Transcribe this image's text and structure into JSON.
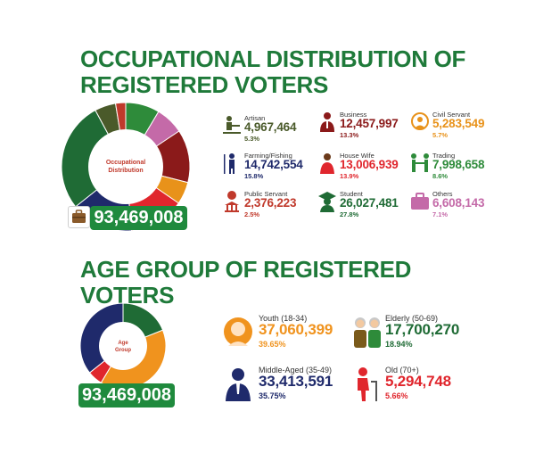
{
  "occupation": {
    "title": "OCCUPATIONAL DISTRIBUTION OF REGISTERED VOTERS",
    "center_label": "Occupational Distribution",
    "total": "93,469,008",
    "items": [
      {
        "label": "Artisan",
        "value": "4,967,464",
        "pct": "5.3%",
        "color": "#4a5a2a",
        "icon": "artisan-icon"
      },
      {
        "label": "Business",
        "value": "12,457,997",
        "pct": "13.3%",
        "color": "#8b1a1a",
        "icon": "business-person-icon"
      },
      {
        "label": "Civil Servant",
        "value": "5,283,549",
        "pct": "5.7%",
        "color": "#e8921a",
        "icon": "civil-servant-icon"
      },
      {
        "label": "Farming/Fishing",
        "value": "14,742,554",
        "pct": "15.8%",
        "color": "#1f2a6b",
        "icon": "farmer-icon"
      },
      {
        "label": "House Wife",
        "value": "13,006,939",
        "pct": "13.9%",
        "color": "#e0262d",
        "icon": "housewife-icon"
      },
      {
        "label": "Trading",
        "value": "7,998,658",
        "pct": "8.6%",
        "color": "#2e8b3a",
        "icon": "trading-icon"
      },
      {
        "label": "Public Servant",
        "value": "2,376,223",
        "pct": "2.5%",
        "color": "#c0392b",
        "icon": "public-servant-icon"
      },
      {
        "label": "Student",
        "value": "26,027,481",
        "pct": "27.8%",
        "color": "#1f6b35",
        "icon": "student-icon"
      },
      {
        "label": "Others",
        "value": "6,608,143",
        "pct": "7.1%",
        "color": "#c46aa8",
        "icon": "briefcase-icon"
      }
    ]
  },
  "age": {
    "title": "AGE GROUP OF REGISTERED VOTERS",
    "center_label": "Age Group",
    "total": "93,469,008",
    "items": [
      {
        "label": "Youth (18-34)",
        "value": "37,060,399",
        "pct": "39.65%",
        "color": "#f0931e",
        "icon": "youth-icon"
      },
      {
        "label": "Elderly (50-69)",
        "value": "17,700,270",
        "pct": "18.94%",
        "color": "#1f6b35",
        "icon": "elderly-couple-icon"
      },
      {
        "label": "Middle-Aged (35-49)",
        "value": "33,413,591",
        "pct": "35.75%",
        "color": "#1f2a6b",
        "icon": "middle-aged-icon"
      },
      {
        "label": "Old (70+)",
        "value": "5,294,748",
        "pct": "5.66%",
        "color": "#e0262d",
        "icon": "old-person-icon"
      }
    ]
  },
  "chart_data": [
    {
      "type": "pie",
      "title": "OCCUPATIONAL DISTRIBUTION OF REGISTERED VOTERS",
      "categories": [
        "Artisan",
        "Business",
        "Civil Servant",
        "Farming/Fishing",
        "House Wife",
        "Trading",
        "Public Servant",
        "Student",
        "Others"
      ],
      "values": [
        4967464,
        12457997,
        5283549,
        14742554,
        13006939,
        7998658,
        2376223,
        26027481,
        6608143
      ],
      "colors": [
        "#4a5a2a",
        "#8b1a1a",
        "#e8921a",
        "#1f2a6b",
        "#e0262d",
        "#2e8b3a",
        "#c0392b",
        "#1f6b35",
        "#c46aa8"
      ],
      "total": 93469008
    },
    {
      "type": "pie",
      "title": "AGE GROUP OF REGISTERED VOTERS",
      "categories": [
        "Youth (18-34)",
        "Elderly (50-69)",
        "Middle-Aged (35-49)",
        "Old (70+)"
      ],
      "values": [
        37060399,
        17700270,
        33413591,
        5294748
      ],
      "colors": [
        "#f0931e",
        "#1f6b35",
        "#1f2a6b",
        "#e0262d"
      ],
      "total": 93469008
    }
  ]
}
